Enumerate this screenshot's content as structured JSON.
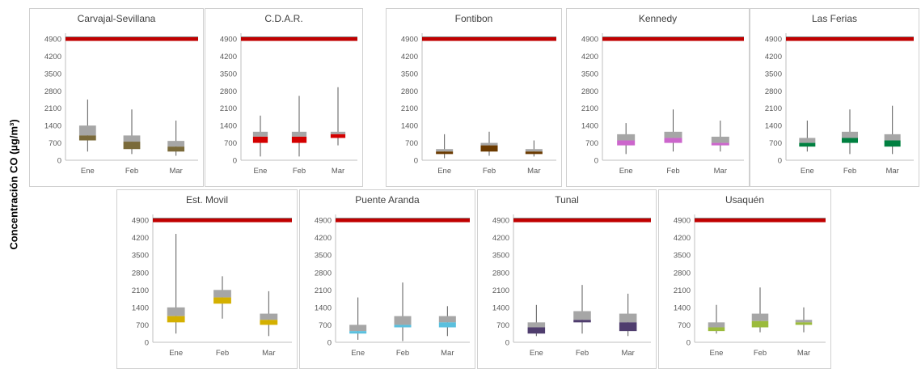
{
  "y_axis_label": "Concentración CO  (µg/m³)",
  "colors": {
    "box_upper": "#a6a6a6",
    "limit_line": "#c00000",
    "whisker": "#595959"
  },
  "chart_data": [
    {
      "type": "box",
      "title": "Carvajal-Sevillana",
      "categories": [
        "Ene",
        "Feb",
        "Mar"
      ],
      "color": "#7a6a3a",
      "ylim": [
        0,
        5000
      ],
      "yticks": [
        0,
        700,
        1400,
        2100,
        2800,
        3500,
        4200,
        4900
      ],
      "limit": 4900,
      "boxes": [
        {
          "min": 350,
          "q1": 800,
          "median": 1000,
          "q3": 1400,
          "max": 2450
        },
        {
          "min": 250,
          "q1": 450,
          "median": 750,
          "q3": 1000,
          "max": 2050
        },
        {
          "min": 180,
          "q1": 350,
          "median": 550,
          "q3": 780,
          "max": 1600
        }
      ]
    },
    {
      "type": "box",
      "title": "C.D.A.R.",
      "categories": [
        "Ene",
        "Feb",
        "Mar"
      ],
      "color": "#d40000",
      "ylim": [
        0,
        5000
      ],
      "yticks": [
        0,
        700,
        1400,
        2100,
        2800,
        3500,
        4200,
        4900
      ],
      "limit": 4900,
      "boxes": [
        {
          "min": 150,
          "q1": 700,
          "median": 950,
          "q3": 1150,
          "max": 1800
        },
        {
          "min": 150,
          "q1": 700,
          "median": 950,
          "q3": 1150,
          "max": 2600
        },
        {
          "min": 600,
          "q1": 900,
          "median": 1050,
          "q3": 1150,
          "max": 2950
        }
      ]
    },
    {
      "type": "box",
      "title": "Fontibon",
      "categories": [
        "Ene",
        "Feb",
        "Mar"
      ],
      "color": "#6b3a00",
      "ylim": [
        0,
        5000
      ],
      "yticks": [
        0,
        700,
        1400,
        2100,
        2800,
        3500,
        4200,
        4900
      ],
      "limit": 4900,
      "boxes": [
        {
          "min": 80,
          "q1": 250,
          "median": 350,
          "q3": 450,
          "max": 1050
        },
        {
          "min": 180,
          "q1": 350,
          "median": 600,
          "q3": 700,
          "max": 1150
        },
        {
          "min": 150,
          "q1": 250,
          "median": 350,
          "q3": 450,
          "max": 800
        }
      ]
    },
    {
      "type": "box",
      "title": "Kennedy",
      "categories": [
        "Ene",
        "Feb",
        "Mar"
      ],
      "color": "#cc66cc",
      "ylim": [
        0,
        5000
      ],
      "yticks": [
        0,
        700,
        1400,
        2100,
        2800,
        3500,
        4200,
        4900
      ],
      "limit": 4900,
      "boxes": [
        {
          "min": 250,
          "q1": 600,
          "median": 800,
          "q3": 1050,
          "max": 1500
        },
        {
          "min": 350,
          "q1": 700,
          "median": 900,
          "q3": 1150,
          "max": 2050
        },
        {
          "min": 350,
          "q1": 600,
          "median": 700,
          "q3": 950,
          "max": 1600
        }
      ]
    },
    {
      "type": "box",
      "title": "Las Ferias",
      "categories": [
        "Ene",
        "Feb",
        "Mar"
      ],
      "color": "#008040",
      "ylim": [
        0,
        5000
      ],
      "yticks": [
        0,
        700,
        1400,
        2100,
        2800,
        3500,
        4200,
        4900
      ],
      "limit": 4900,
      "boxes": [
        {
          "min": 350,
          "q1": 550,
          "median": 700,
          "q3": 900,
          "max": 1600
        },
        {
          "min": 250,
          "q1": 700,
          "median": 900,
          "q3": 1150,
          "max": 2050
        },
        {
          "min": 250,
          "q1": 550,
          "median": 800,
          "q3": 1050,
          "max": 2200
        }
      ]
    },
    {
      "type": "box",
      "title": "Est. Movil",
      "categories": [
        "Ene",
        "Feb",
        "Mar"
      ],
      "color": "#d4b000",
      "ylim": [
        0,
        5000
      ],
      "yticks": [
        0,
        700,
        1400,
        2100,
        2800,
        3500,
        4200,
        4900
      ],
      "limit": 4900,
      "boxes": [
        {
          "min": 350,
          "q1": 800,
          "median": 1050,
          "q3": 1400,
          "max": 4350
        },
        {
          "min": 950,
          "q1": 1550,
          "median": 1800,
          "q3": 2100,
          "max": 2650
        },
        {
          "min": 250,
          "q1": 700,
          "median": 900,
          "q3": 1150,
          "max": 2050
        }
      ]
    },
    {
      "type": "box",
      "title": "Puente Aranda",
      "categories": [
        "Ene",
        "Feb",
        "Mar"
      ],
      "color": "#5bc0de",
      "ylim": [
        0,
        5000
      ],
      "yticks": [
        0,
        700,
        1400,
        2100,
        2800,
        3500,
        4200,
        4900
      ],
      "limit": 4900,
      "boxes": [
        {
          "min": 100,
          "q1": 350,
          "median": 450,
          "q3": 700,
          "max": 1800
        },
        {
          "min": 50,
          "q1": 600,
          "median": 700,
          "q3": 1050,
          "max": 2400
        },
        {
          "min": 250,
          "q1": 600,
          "median": 800,
          "q3": 1050,
          "max": 1450
        }
      ]
    },
    {
      "type": "box",
      "title": "Tunal",
      "categories": [
        "Ene",
        "Feb",
        "Mar"
      ],
      "color": "#4f3d6e",
      "ylim": [
        0,
        5000
      ],
      "yticks": [
        0,
        700,
        1400,
        2100,
        2800,
        3500,
        4200,
        4900
      ],
      "limit": 4900,
      "boxes": [
        {
          "min": 250,
          "q1": 350,
          "median": 600,
          "q3": 800,
          "max": 1500
        },
        {
          "min": 350,
          "q1": 800,
          "median": 900,
          "q3": 1250,
          "max": 2300
        },
        {
          "min": 250,
          "q1": 450,
          "median": 800,
          "q3": 1150,
          "max": 1950
        }
      ]
    },
    {
      "type": "box",
      "title": "Usaquén",
      "categories": [
        "Ene",
        "Feb",
        "Mar"
      ],
      "color": "#9bbb3c",
      "ylim": [
        0,
        5000
      ],
      "yticks": [
        0,
        700,
        1400,
        2100,
        2800,
        3500,
        4200,
        4900
      ],
      "limit": 4900,
      "boxes": [
        {
          "min": 350,
          "q1": 450,
          "median": 600,
          "q3": 800,
          "max": 1500
        },
        {
          "min": 400,
          "q1": 600,
          "median": 850,
          "q3": 1150,
          "max": 2200
        },
        {
          "min": 400,
          "q1": 700,
          "median": 800,
          "q3": 900,
          "max": 1400
        }
      ]
    }
  ]
}
